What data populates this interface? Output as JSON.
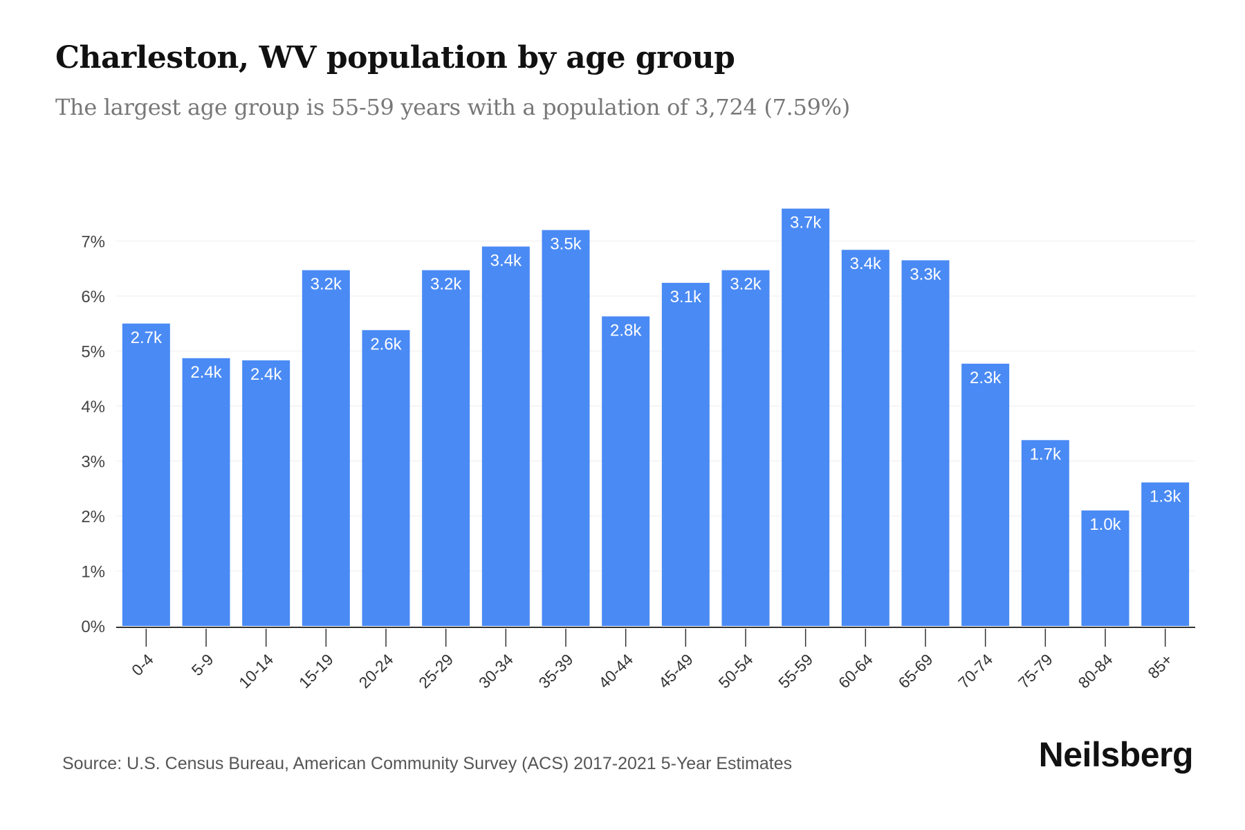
{
  "header": {
    "title": "Charleston, WV population by age group",
    "subtitle": "The largest age group is 55-59 years with a population of 3,724 (7.59%)"
  },
  "footer": {
    "source": "Source: U.S. Census Bureau, American Community Survey (ACS) 2017-2021 5-Year Estimates",
    "brand": "Neilsberg"
  },
  "chart_data": {
    "type": "bar",
    "title": "Charleston, WV population by age group",
    "subtitle": "The largest age group is 55-59 years with a population of 3,724 (7.59%)",
    "xlabel": "",
    "ylabel": "",
    "categories": [
      "0-4",
      "5-9",
      "10-14",
      "15-19",
      "20-24",
      "25-29",
      "30-34",
      "35-39",
      "40-44",
      "45-49",
      "50-54",
      "55-59",
      "60-64",
      "65-69",
      "70-74",
      "75-79",
      "80-84",
      "85+"
    ],
    "values": [
      5.5,
      4.87,
      4.83,
      6.47,
      5.38,
      6.47,
      6.9,
      7.2,
      5.63,
      6.24,
      6.47,
      7.59,
      6.84,
      6.65,
      4.77,
      3.38,
      2.1,
      2.61
    ],
    "data_labels": [
      "2.7k",
      "2.4k",
      "2.4k",
      "3.2k",
      "2.6k",
      "3.2k",
      "3.4k",
      "3.5k",
      "2.8k",
      "3.1k",
      "3.2k",
      "3.7k",
      "3.4k",
      "3.3k",
      "2.3k",
      "1.7k",
      "1.0k",
      "1.3k"
    ],
    "y_ticks": [
      "0%",
      "1%",
      "2%",
      "3%",
      "4%",
      "5%",
      "6%",
      "7%"
    ],
    "ylim": [
      0,
      7.6
    ],
    "grid": true,
    "bar_color": "#4a8af4"
  }
}
